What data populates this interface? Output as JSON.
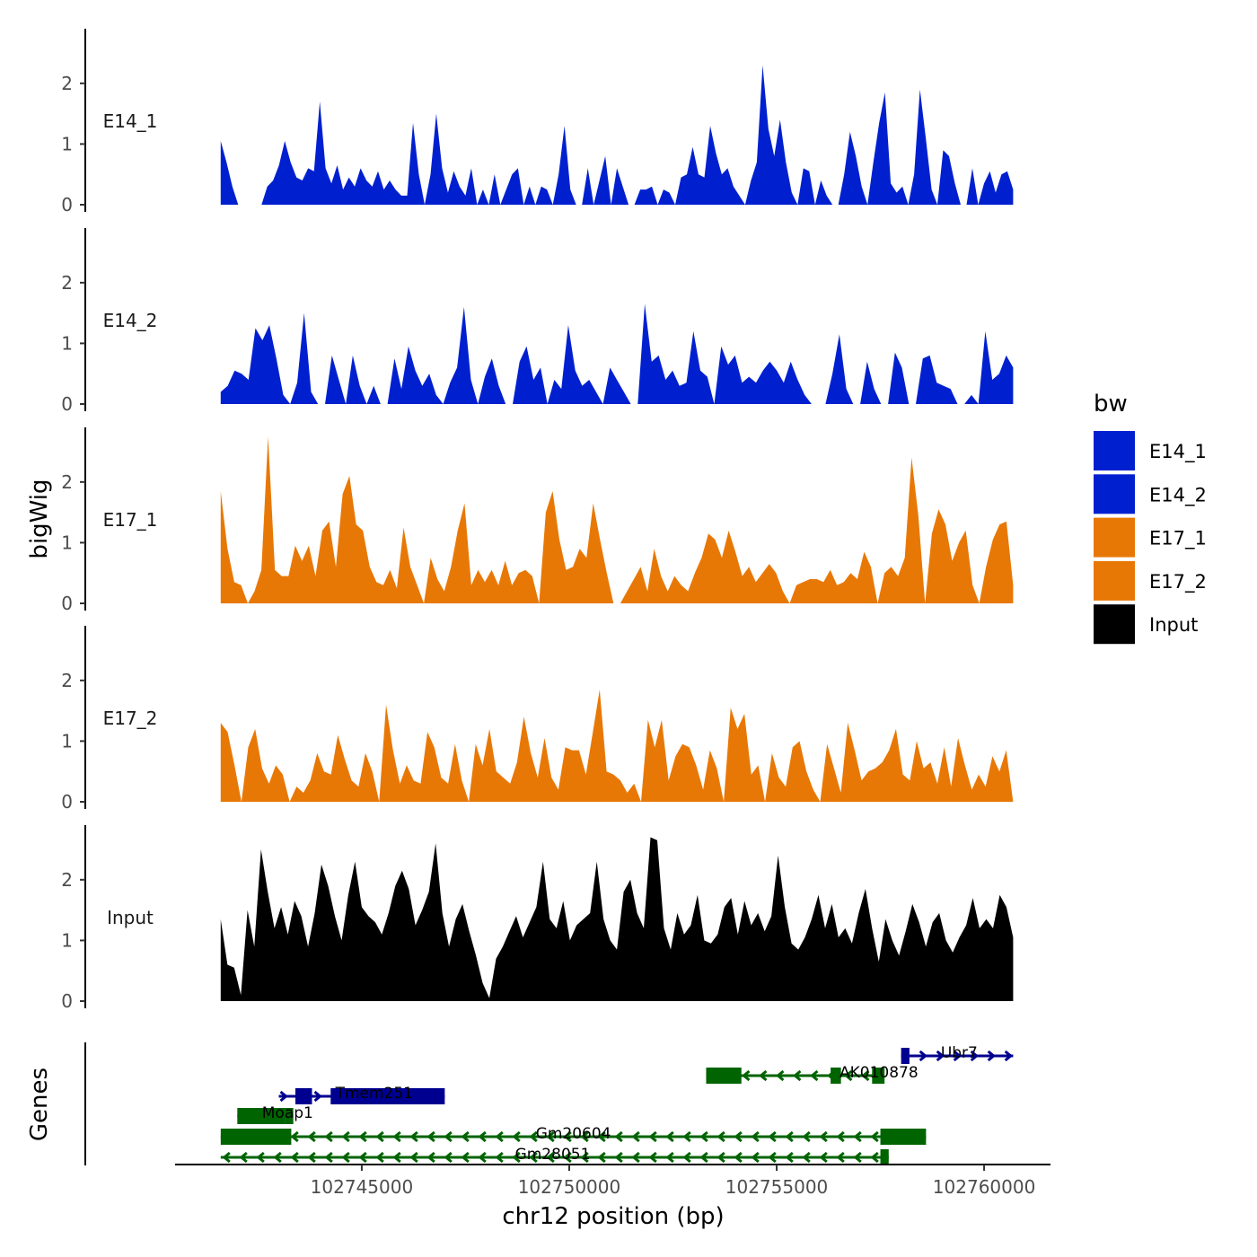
{
  "chart_data": {
    "type": "area",
    "ylabel": "bigWig",
    "xlabel": "chr12 position (bp)",
    "genes_label": "Genes",
    "xlim": [
      102740500,
      102761600
    ],
    "x_ticks": [
      102745000,
      102750000,
      102755000,
      102760000
    ],
    "x_tick_labels": [
      "102745000",
      "102750000",
      "102755000",
      "102760000"
    ],
    "ylim": [
      0,
      2.9
    ],
    "y_ticks": [
      0,
      1,
      2
    ],
    "y_tick_labels": [
      "0",
      "1",
      "2"
    ],
    "data_range": [
      102741600,
      102760700
    ],
    "legend": {
      "title": "bw",
      "entries": [
        {
          "label": "E14_1",
          "color": "#0020d0"
        },
        {
          "label": "E14_2",
          "color": "#0020d0"
        },
        {
          "label": "E17_1",
          "color": "#e87806"
        },
        {
          "label": "E17_2",
          "color": "#e87806"
        },
        {
          "label": "Input",
          "color": "#000000"
        }
      ]
    },
    "series": [
      {
        "name": "E14_1",
        "color": "#0020d0",
        "values": [
          1.05,
          0.7,
          0.3,
          0,
          0,
          0,
          0,
          0,
          0.3,
          0.4,
          0.65,
          1.05,
          0.7,
          0.45,
          0.4,
          0.6,
          0.55,
          1.7,
          0.6,
          0.35,
          0.65,
          0.25,
          0.45,
          0.3,
          0.6,
          0.4,
          0.3,
          0.55,
          0.25,
          0.4,
          0.25,
          0.15,
          0.15,
          1.35,
          0.5,
          0,
          0.5,
          1.5,
          0.6,
          0.2,
          0.55,
          0.3,
          0.15,
          0.6,
          0,
          0.25,
          0,
          0.5,
          0,
          0.25,
          0.5,
          0.6,
          0,
          0.3,
          0,
          0.3,
          0.25,
          0,
          0.5,
          1.3,
          0.25,
          0,
          0,
          0.6,
          0,
          0.4,
          0.8,
          0,
          0.6,
          0.3,
          0,
          0,
          0.25,
          0.25,
          0.3,
          0,
          0.25,
          0.2,
          0,
          0.45,
          0.5,
          0.95,
          0.5,
          0.45,
          1.3,
          0.85,
          0.5,
          0.6,
          0.3,
          0.15,
          0,
          0.4,
          0.7,
          2.3,
          1.25,
          0.8,
          1.4,
          0.7,
          0.2,
          0,
          0.6,
          0.55,
          0,
          0.4,
          0.15,
          0,
          0,
          0.5,
          1.2,
          0.8,
          0.3,
          0,
          0.7,
          1.35,
          1.85,
          0.35,
          0.2,
          0.3,
          0,
          0.5,
          1.9,
          1.1,
          0.25,
          0,
          0.9,
          0.8,
          0.35,
          0,
          0,
          0.6,
          0,
          0.35,
          0.55,
          0.2,
          0.5,
          0.55,
          0.25
        ]
      },
      {
        "name": "E14_2",
        "color": "#0020d0",
        "values": [
          0.2,
          0.3,
          0.55,
          0.5,
          0.4,
          1.25,
          1.05,
          1.3,
          0.75,
          0.15,
          0,
          0.35,
          1.5,
          0.2,
          0,
          0,
          0.8,
          0.4,
          0,
          0.8,
          0.3,
          0,
          0.3,
          0,
          0,
          0.75,
          0.25,
          0.95,
          0.55,
          0.3,
          0.5,
          0.15,
          0,
          0.35,
          0.6,
          1.6,
          0.4,
          0,
          0.45,
          0.75,
          0.3,
          0,
          0,
          0.7,
          0.95,
          0.4,
          0.6,
          0,
          0.4,
          0.25,
          1.3,
          0.55,
          0.3,
          0.4,
          0.2,
          0,
          0.6,
          0.4,
          0.2,
          0,
          0,
          1.65,
          0.7,
          0.8,
          0.4,
          0.55,
          0.3,
          0.35,
          1.2,
          0.55,
          0.45,
          0,
          0.95,
          0.65,
          0.8,
          0.35,
          0.45,
          0.35,
          0.55,
          0.7,
          0.55,
          0.35,
          0.7,
          0.4,
          0.15,
          0,
          0,
          0,
          0.5,
          1.15,
          0.25,
          0,
          0,
          0.7,
          0.25,
          0,
          0,
          0.85,
          0.6,
          0,
          0,
          0.75,
          0.8,
          0.35,
          0.3,
          0.25,
          0,
          0,
          0.15,
          0,
          1.2,
          0.4,
          0.5,
          0.8,
          0.6
        ]
      },
      {
        "name": "E17_1",
        "color": "#e87806",
        "values": [
          1.85,
          0.9,
          0.35,
          0.3,
          0,
          0.2,
          0.55,
          2.75,
          0.55,
          0.45,
          0.45,
          0.95,
          0.7,
          0.95,
          0.45,
          1.2,
          1.35,
          0.6,
          1.8,
          2.1,
          1.3,
          1.2,
          0.6,
          0.35,
          0.3,
          0.55,
          0.25,
          1.25,
          0.6,
          0.3,
          0,
          0.75,
          0.4,
          0.2,
          0.6,
          1.2,
          1.65,
          0.3,
          0.55,
          0.35,
          0.55,
          0.3,
          0.7,
          0.3,
          0.5,
          0.55,
          0.45,
          0,
          1.5,
          1.85,
          1.05,
          0.55,
          0.6,
          0.9,
          0.75,
          1.65,
          1.05,
          0.5,
          0,
          0,
          0.2,
          0.4,
          0.6,
          0.2,
          0.9,
          0.45,
          0.2,
          0.45,
          0.3,
          0.2,
          0.5,
          0.75,
          1.15,
          1.05,
          0.75,
          1.2,
          0.85,
          0.45,
          0.6,
          0.35,
          0.5,
          0.65,
          0.5,
          0.2,
          0,
          0.3,
          0.35,
          0.4,
          0.4,
          0.35,
          0.55,
          0.3,
          0.35,
          0.5,
          0.4,
          0.85,
          0.6,
          0,
          0.5,
          0.6,
          0.45,
          0.75,
          2.4,
          1.45,
          0,
          1.15,
          1.55,
          1.3,
          0.7,
          1.0,
          1.2,
          0.3,
          0,
          0.6,
          1.05,
          1.3,
          1.35,
          0.3
        ]
      },
      {
        "name": "E17_2",
        "color": "#e87806",
        "values": [
          1.3,
          1.15,
          0.6,
          0,
          0.9,
          1.2,
          0.55,
          0.3,
          0.6,
          0.45,
          0,
          0.25,
          0.15,
          0.35,
          0.8,
          0.5,
          0.45,
          1.1,
          0.7,
          0.35,
          0.25,
          0.8,
          0.5,
          0,
          1.6,
          0.85,
          0.3,
          0.6,
          0.35,
          0.3,
          1.15,
          0.9,
          0.4,
          0.3,
          0.95,
          0.35,
          0,
          0.95,
          0.6,
          1.2,
          0.5,
          0.4,
          0.3,
          0.65,
          1.4,
          0.8,
          0.4,
          1.05,
          0.4,
          0.2,
          0.9,
          0.85,
          0.85,
          0.45,
          1.15,
          1.85,
          0.5,
          0.45,
          0.35,
          0.15,
          0.3,
          0,
          1.35,
          0.9,
          1.35,
          0.35,
          0.75,
          0.95,
          0.9,
          0.6,
          0.2,
          0.85,
          0.55,
          0,
          1.55,
          1.2,
          1.45,
          0.45,
          0.6,
          0,
          0.8,
          0.4,
          0.25,
          0.9,
          1.0,
          0.5,
          0.2,
          0,
          0.95,
          0.55,
          0.15,
          1.3,
          0.85,
          0.35,
          0.5,
          0.55,
          0.65,
          0.85,
          1.2,
          0.45,
          0.35,
          1.0,
          0.55,
          0.65,
          0.3,
          0.9,
          0.25,
          1.05,
          0.6,
          0.2,
          0.45,
          0.25,
          0.75,
          0.5,
          0.85,
          0
        ]
      },
      {
        "name": "Input",
        "color": "#000000",
        "values": [
          1.35,
          0.6,
          0.55,
          0.1,
          1.5,
          0.9,
          2.5,
          1.8,
          1.2,
          1.55,
          1.1,
          1.65,
          1.4,
          0.9,
          1.45,
          2.25,
          1.9,
          1.4,
          1.0,
          1.75,
          2.3,
          1.55,
          1.4,
          1.3,
          1.1,
          1.45,
          1.9,
          2.15,
          1.85,
          1.25,
          1.5,
          1.8,
          2.6,
          1.45,
          0.9,
          1.35,
          1.6,
          1.15,
          0.75,
          0.3,
          0.05,
          0.7,
          0.9,
          1.15,
          1.4,
          1.05,
          1.3,
          1.55,
          2.3,
          1.35,
          1.2,
          1.65,
          1.0,
          1.25,
          1.35,
          1.45,
          2.3,
          1.35,
          1.0,
          0.85,
          1.8,
          2.0,
          1.45,
          1.2,
          2.7,
          2.65,
          1.2,
          0.85,
          1.45,
          1.1,
          1.25,
          1.75,
          1.0,
          0.95,
          1.1,
          1.55,
          1.7,
          1.1,
          1.65,
          1.25,
          1.45,
          1.15,
          1.4,
          2.4,
          1.55,
          0.95,
          0.85,
          1.05,
          1.35,
          1.75,
          1.2,
          1.6,
          1.05,
          1.2,
          0.95,
          1.45,
          1.85,
          1.2,
          0.65,
          1.35,
          1.0,
          0.75,
          1.15,
          1.6,
          1.3,
          0.9,
          1.3,
          1.45,
          1.0,
          0.8,
          1.05,
          1.25,
          1.7,
          1.2,
          1.35,
          1.2,
          1.75,
          1.55,
          1.05
        ]
      }
    ],
    "genes": [
      {
        "name": "Ubr7",
        "start": 102758000,
        "end": 102760700,
        "strand": "+",
        "color": "#000090",
        "row": 0,
        "exons": [
          [
            102758000,
            102758200
          ]
        ]
      },
      {
        "name": "AK010878",
        "start": 102753300,
        "end": 102757600,
        "strand": "-",
        "color": "#006400",
        "row": 1,
        "exons": [
          [
            102753300,
            102754150
          ],
          [
            102756300,
            102756550
          ],
          [
            102757300,
            102757600
          ]
        ]
      },
      {
        "name": "Tmem251",
        "start": 102743000,
        "end": 102747000,
        "strand": "+",
        "color": "#000090",
        "row": 2,
        "exons": [
          [
            102743400,
            102743800
          ],
          [
            102744250,
            102747000
          ]
        ]
      },
      {
        "name": "Moap1",
        "start": 102742000,
        "end": 102743350,
        "strand": "-",
        "color": "#006400",
        "row": 3,
        "exons": [
          [
            102742000,
            102743150
          ],
          [
            102743150,
            102743350
          ]
        ]
      },
      {
        "name": "Gm20604",
        "start": 102741600,
        "end": 102758600,
        "strand": "-",
        "color": "#006400",
        "row": 4,
        "exons": [
          [
            102741600,
            102743300
          ],
          [
            102757500,
            102758600
          ]
        ]
      },
      {
        "name": "Gm28051",
        "start": 102741600,
        "end": 102757700,
        "strand": "-",
        "color": "#006400",
        "row": 5,
        "exons": [
          [
            102757500,
            102757700
          ]
        ]
      }
    ]
  }
}
